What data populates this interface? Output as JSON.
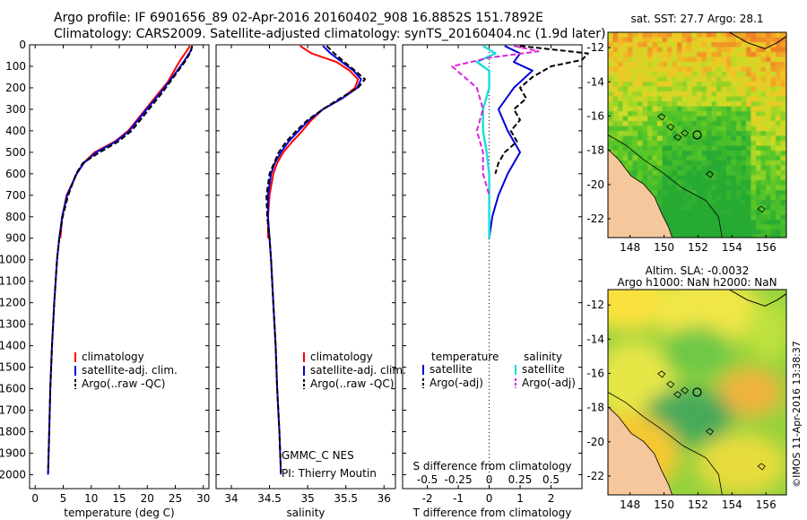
{
  "header": {
    "line1": "Argo profile: IF 6901656_89 02-Apr-2016 20160402_908 16.8852S 151.7892E",
    "line2": "Climatology: CARS2009. Satellite-adjusted climatology: synTS_20160404.nc (1.9d later)"
  },
  "colors": {
    "climatology": "#ff0000",
    "satellite": "#0000dd",
    "argo": "#000000",
    "sal_satellite": "#22dddd",
    "sal_argo": "#dd22dd",
    "land": "#f4c79c"
  },
  "chart_data": [
    {
      "type": "line",
      "name": "temperature",
      "xlabel": "temperature (deg C)",
      "xlim": [
        -1,
        31
      ],
      "xticks": [
        0,
        5,
        10,
        15,
        20,
        25,
        30
      ],
      "ylim": [
        2065,
        0
      ],
      "yticks": [
        0,
        100,
        200,
        300,
        400,
        500,
        600,
        700,
        800,
        900,
        1000,
        1100,
        1200,
        1300,
        1400,
        1500,
        1600,
        1700,
        1800,
        1900,
        2000
      ],
      "legend": [
        "climatology",
        "satellite-adj. clim.",
        "Argo(..raw -QC)"
      ],
      "series": [
        {
          "name": "climatology",
          "depth": [
            5,
            30,
            75,
            125,
            175,
            225,
            300,
            400,
            450,
            500,
            550,
            600,
            700,
            800,
            900
          ],
          "values": [
            27.6,
            27.0,
            25.8,
            24.7,
            23.6,
            22.0,
            19.7,
            16.6,
            14.2,
            10.6,
            8.6,
            7.4,
            5.6,
            4.8,
            4.5
          ]
        },
        {
          "name": "satellite-adj. clim.",
          "depth": [
            5,
            30,
            75,
            125,
            175,
            225,
            300,
            400,
            450,
            500,
            550,
            600,
            700,
            800,
            900,
            1000,
            1200,
            1400,
            1600,
            1800,
            2000
          ],
          "values": [
            28.0,
            27.7,
            26.6,
            25.2,
            23.8,
            22.3,
            19.9,
            16.8,
            14.4,
            10.9,
            8.7,
            7.4,
            5.7,
            4.8,
            4.3,
            3.9,
            3.4,
            3.0,
            2.7,
            2.5,
            2.3
          ]
        },
        {
          "name": "Argo(..raw -QC)",
          "depth": [
            5,
            30,
            75,
            125,
            175,
            225,
            300,
            400,
            450,
            500,
            550,
            600,
            700,
            800,
            900,
            1000,
            1200,
            1400,
            1600,
            1800,
            1990
          ],
          "values": [
            28.0,
            27.8,
            26.8,
            25.4,
            24.0,
            22.6,
            20.3,
            17.2,
            14.8,
            11.5,
            8.5,
            7.3,
            5.9,
            4.9,
            4.3,
            3.9,
            3.4,
            3.0,
            2.7,
            2.5,
            2.3
          ]
        }
      ]
    },
    {
      "type": "line",
      "name": "salinity",
      "xlabel": "salinity",
      "xlim": [
        33.8,
        36.15
      ],
      "xticks": [
        34,
        34.5,
        35,
        35.5,
        36
      ],
      "ylim": [
        2065,
        0
      ],
      "legend": [
        "climatology",
        "satellite-adj. clim.",
        "Argo(..raw -QC)"
      ],
      "annotations": [
        "GMMC_C NES",
        "PI: Thierry Moutin"
      ],
      "series": [
        {
          "name": "climatology",
          "depth": [
            5,
            40,
            80,
            120,
            160,
            200,
            250,
            300,
            350,
            400,
            450,
            500,
            550,
            600,
            700,
            800,
            900
          ],
          "values": [
            34.9,
            35.05,
            35.38,
            35.55,
            35.66,
            35.62,
            35.45,
            35.2,
            35.05,
            34.93,
            34.8,
            34.68,
            34.6,
            34.55,
            34.5,
            34.48,
            34.48
          ]
        },
        {
          "name": "satellite-adj. clim.",
          "depth": [
            5,
            40,
            80,
            120,
            160,
            200,
            250,
            300,
            350,
            400,
            450,
            500,
            550,
            600,
            700,
            800,
            900,
            1000,
            1200,
            1400,
            1600,
            1800,
            2000
          ],
          "values": [
            35.2,
            35.3,
            35.45,
            35.6,
            35.7,
            35.65,
            35.45,
            35.2,
            35.02,
            34.88,
            34.75,
            34.65,
            34.57,
            34.52,
            34.48,
            34.48,
            34.5,
            34.52,
            34.55,
            34.58,
            34.6,
            34.63,
            34.65
          ]
        },
        {
          "name": "Argo(..raw -QC)",
          "depth": [
            5,
            40,
            80,
            120,
            160,
            200,
            250,
            300,
            350,
            400,
            450,
            500,
            550,
            600,
            700,
            800,
            900,
            1000,
            1200,
            1400,
            1600,
            1800,
            1990
          ],
          "values": [
            35.25,
            35.35,
            35.48,
            35.62,
            35.75,
            35.66,
            35.42,
            35.2,
            35.0,
            34.85,
            34.72,
            34.62,
            34.56,
            34.5,
            34.46,
            34.47,
            34.5,
            34.52,
            34.55,
            34.58,
            34.6,
            34.63,
            34.65
          ]
        }
      ]
    },
    {
      "type": "line",
      "name": "difference",
      "xlabel": "T difference from climatology",
      "x2label": "S difference from climatology",
      "xlim": [
        -2.8,
        3.0
      ],
      "xticks": [
        -2,
        -1,
        0,
        1,
        2
      ],
      "sticks": [
        "-0.5",
        "-0.25",
        "0",
        "0.25",
        "0.5"
      ],
      "ylim": [
        2065,
        0
      ],
      "legend_titles": [
        "temperature",
        "salinity"
      ],
      "legend": [
        "satellite",
        "Argo(-adj)",
        "satellite",
        "Argo(-adj)"
      ],
      "series": [
        {
          "name": "temperature satellite",
          "depth": [
            5,
            40,
            80,
            120,
            200,
            300,
            400,
            500,
            600,
            700,
            800,
            900
          ],
          "values": [
            0.5,
            1.0,
            0.8,
            1.4,
            0.8,
            0.3,
            0.6,
            1.0,
            0.6,
            0.3,
            0.1,
            0.0
          ]
        },
        {
          "name": "temperature Argo(-adj)",
          "depth": [
            5,
            40,
            70,
            100,
            150,
            200,
            250,
            300,
            350,
            400,
            450,
            500,
            550,
            600
          ],
          "values": [
            1.0,
            3.2,
            3.0,
            2.0,
            1.4,
            1.0,
            1.2,
            0.8,
            1.0,
            0.7,
            0.9,
            0.5,
            0.3,
            0.2
          ]
        },
        {
          "name": "salinity satellite",
          "depth": [
            5,
            40,
            80,
            120,
            200,
            300,
            400,
            500,
            600,
            700,
            800,
            900
          ],
          "values": [
            -0.05,
            0.05,
            -0.1,
            0.0,
            0.0,
            -0.05,
            -0.05,
            -0.02,
            0.0,
            0.0,
            0.0,
            0.0
          ]
        },
        {
          "name": "salinity Argo(-adj)",
          "depth": [
            5,
            30,
            60,
            100,
            150,
            200,
            300,
            400,
            500,
            600,
            700
          ],
          "values": [
            0.2,
            0.4,
            0.0,
            -0.3,
            -0.2,
            -0.1,
            -0.05,
            -0.1,
            -0.05,
            -0.05,
            0.0
          ]
        }
      ]
    }
  ],
  "maps": [
    {
      "name": "sst-map",
      "title1": "sat. SST: 27.7 Argo: 28.1",
      "title2": "",
      "lat_ticks": [
        "-12",
        "-14",
        "-16",
        "-18",
        "-20",
        "-22"
      ],
      "lon_ticks": [
        "148",
        "150",
        "152",
        "154",
        "156"
      ]
    },
    {
      "name": "sla-map",
      "title1": "Altim. SLA: -0.0032",
      "title2": "Argo h1000: NaN h2000: NaN",
      "lat_ticks": [
        "-12",
        "-14",
        "-16",
        "-18",
        "-20",
        "-22"
      ],
      "lon_ticks": [
        "148",
        "150",
        "152",
        "154",
        "156"
      ]
    }
  ],
  "credit": "©IMOS 11-Apr-2016 13:38:37"
}
